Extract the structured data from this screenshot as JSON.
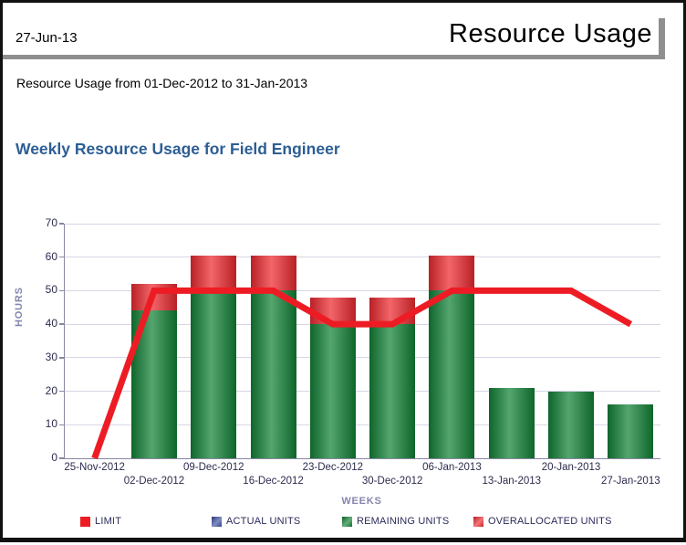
{
  "header": {
    "date": "27-Jun-13",
    "title": "Resource Usage"
  },
  "subtitle": "Resource Usage from 01-Dec-2012 to 31-Jan-2013",
  "chart_title": "Weekly Resource Usage for Field Engineer",
  "chart_data": {
    "type": "bar",
    "title": "Weekly Resource Usage for Field Engineer",
    "xlabel": "WEEKS",
    "ylabel": "HOURS",
    "ylim": [
      0,
      70
    ],
    "ytick_step": 10,
    "grid": true,
    "legend_position": "bottom",
    "categories": [
      "25-Nov-2012",
      "02-Dec-2012",
      "09-Dec-2012",
      "16-Dec-2012",
      "23-Dec-2012",
      "30-Dec-2012",
      "06-Jan-2013",
      "13-Jan-2013",
      "20-Jan-2013",
      "27-Jan-2013"
    ],
    "series": [
      {
        "name": "LIMIT",
        "render": "line",
        "color": "#ed1c24",
        "values": [
          0,
          50,
          50,
          50,
          40,
          40,
          50,
          50,
          50,
          40
        ]
      },
      {
        "name": "ACTUAL UNITS",
        "render": "bar",
        "color": "#3b4fa0",
        "values": [
          0,
          0,
          0,
          0,
          0,
          0,
          0,
          0,
          0,
          0
        ]
      },
      {
        "name": "REMAINING UNITS",
        "render": "bar",
        "color": "#128236",
        "values": [
          0,
          44,
          49.5,
          50,
          40,
          40,
          50,
          21,
          20,
          16
        ]
      },
      {
        "name": "OVERALLOCATED UNITS",
        "render": "bar-stacked",
        "color": "#ed2a30",
        "values": [
          0,
          8,
          11,
          10.5,
          8,
          8,
          10.5,
          0,
          0,
          0
        ]
      }
    ]
  },
  "legend": [
    {
      "label": "LIMIT",
      "color": "#ed1c24",
      "flat": true
    },
    {
      "label": "ACTUAL UNITS",
      "color": "#3b4fa0",
      "flat": false
    },
    {
      "label": "REMAINING UNITS",
      "color": "#128236",
      "flat": false
    },
    {
      "label": "OVERALLOCATED UNITS",
      "color": "#ed2a30",
      "flat": false
    }
  ],
  "colors": {
    "grid": "#d6d6e6",
    "axis": "#8888a2",
    "tick_text": "#2b2b4d",
    "axis_title": "#8585ad",
    "chart_title": "#2d5e94",
    "header_rule": "#8f8f8f"
  }
}
